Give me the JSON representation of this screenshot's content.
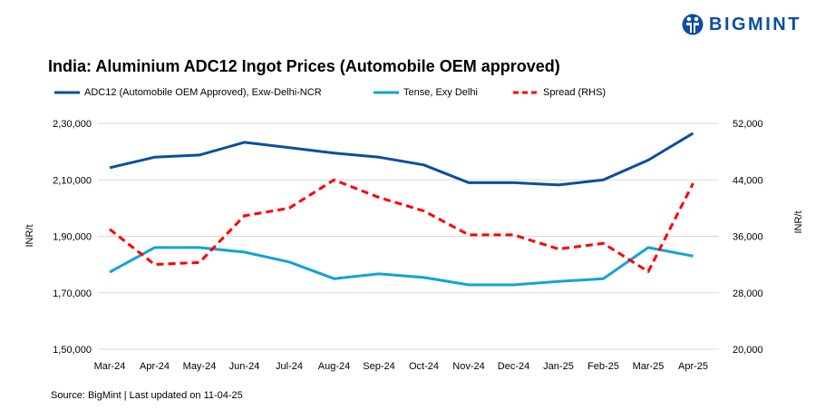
{
  "brand": {
    "name": "BIGMINT",
    "color": "#0b4ea2"
  },
  "chart_data": {
    "type": "line",
    "title": "India: Aluminium ADC12 Ingot Prices (Automobile OEM approved)",
    "source": "Source: BigMint | Last updated on 11-04-25",
    "categories": [
      "Mar-24",
      "Apr-24",
      "May-24",
      "Jun-24",
      "Jul-24",
      "Aug-24",
      "Sep-24",
      "Oct-24",
      "Nov-24",
      "Dec-24",
      "Jan-25",
      "Feb-25",
      "Mar-25",
      "Apr-25"
    ],
    "ylabel": "INR/t",
    "y2label": "INR/t",
    "ylim": [
      150000,
      230000
    ],
    "yticks": [
      "1,50,000",
      "1,70,000",
      "1,90,000",
      "2,10,000",
      "2,30,000"
    ],
    "y2lim": [
      20000,
      52000
    ],
    "y2ticks": [
      "20,000",
      "28,000",
      "36,000",
      "44,000",
      "52,000"
    ],
    "grid": true,
    "legend_position": "top",
    "series": [
      {
        "name": "ADC12 (Automobile OEM Approved), Exw-Delhi-NCR",
        "axis": "left",
        "color": "#0b4ea2",
        "dash": false,
        "values": [
          214300,
          218000,
          218800,
          223300,
          221400,
          219500,
          218000,
          215300,
          209000,
          209000,
          208200,
          210000,
          217000,
          226500
        ]
      },
      {
        "name": "Tense, Exy Delhi",
        "axis": "left",
        "color": "#12a2dc",
        "dash": false,
        "values": [
          177300,
          186000,
          186000,
          184400,
          180900,
          175000,
          176700,
          175400,
          172800,
          172800,
          174000,
          175000,
          186000,
          183000
        ]
      },
      {
        "name": "Spread (RHS)",
        "axis": "right",
        "color": "#ff0000",
        "dash": true,
        "values": [
          37000,
          32000,
          32300,
          38900,
          40000,
          44000,
          41500,
          39600,
          36200,
          36200,
          34200,
          35000,
          31000,
          43500
        ]
      }
    ]
  }
}
